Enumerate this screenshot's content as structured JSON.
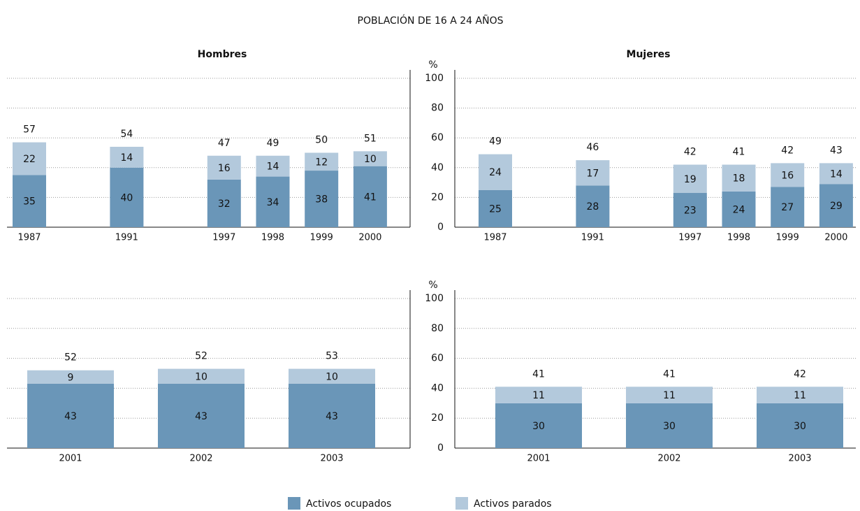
{
  "title": "POBLACIÓN DE 16 A 24 AÑOS",
  "chart_data": [
    {
      "type": "bar",
      "stacked": true,
      "title": "Hombres",
      "grid": true,
      "categories": [
        "1987",
        null,
        "1991",
        null,
        "1997",
        "1998",
        "1999",
        "2000"
      ],
      "series": [
        {
          "name": "Activos ocupados",
          "color": "#6a96b8",
          "values": [
            35,
            null,
            40,
            null,
            32,
            34,
            38,
            41
          ]
        },
        {
          "name": "Activos parados",
          "color": "#b3c9dc",
          "values": [
            22,
            null,
            14,
            null,
            16,
            14,
            12,
            10
          ]
        }
      ],
      "totals": [
        57,
        null,
        54,
        null,
        47,
        49,
        50,
        51
      ],
      "ylim": [
        0,
        100
      ],
      "yticks": [
        0,
        20,
        40,
        60,
        80,
        100
      ]
    },
    {
      "type": "bar",
      "stacked": true,
      "title": "Mujeres",
      "grid": true,
      "ylabel": "%",
      "categories": [
        "1987",
        null,
        "1991",
        null,
        "1997",
        "1998",
        "1999",
        "2000"
      ],
      "series": [
        {
          "color": "#6a96b8",
          "values": [
            25,
            null,
            28,
            null,
            23,
            24,
            27,
            29
          ]
        },
        {
          "color": "#b3c9dc",
          "values": [
            24,
            null,
            17,
            null,
            19,
            18,
            16,
            14
          ]
        }
      ],
      "totals": [
        49,
        null,
        46,
        null,
        42,
        41,
        42,
        43
      ],
      "ylim": [
        0,
        100
      ],
      "yticks": [
        0,
        20,
        40,
        60,
        80,
        100
      ]
    },
    {
      "type": "bar",
      "stacked": true,
      "grid": true,
      "categories": [
        "2001",
        "2002",
        "2003"
      ],
      "series": [
        {
          "color": "#6a96b8",
          "values": [
            43,
            43,
            43
          ]
        },
        {
          "color": "#b3c9dc",
          "values": [
            9,
            10,
            10
          ]
        }
      ],
      "totals": [
        52,
        52,
        53
      ],
      "ylim": [
        0,
        100
      ],
      "yticks": [
        0,
        20,
        40,
        60,
        80,
        100
      ]
    },
    {
      "type": "bar",
      "stacked": true,
      "grid": true,
      "ylabel": "%",
      "categories": [
        "2001",
        "2002",
        "2003"
      ],
      "series": [
        {
          "color": "#6a96b8",
          "values": [
            30,
            30,
            30
          ]
        },
        {
          "color": "#b3c9dc",
          "values": [
            11,
            11,
            11
          ]
        }
      ],
      "totals": [
        41,
        41,
        42
      ],
      "ylim": [
        0,
        100
      ],
      "yticks": [
        0,
        20,
        40,
        60,
        80,
        100
      ]
    }
  ]
}
